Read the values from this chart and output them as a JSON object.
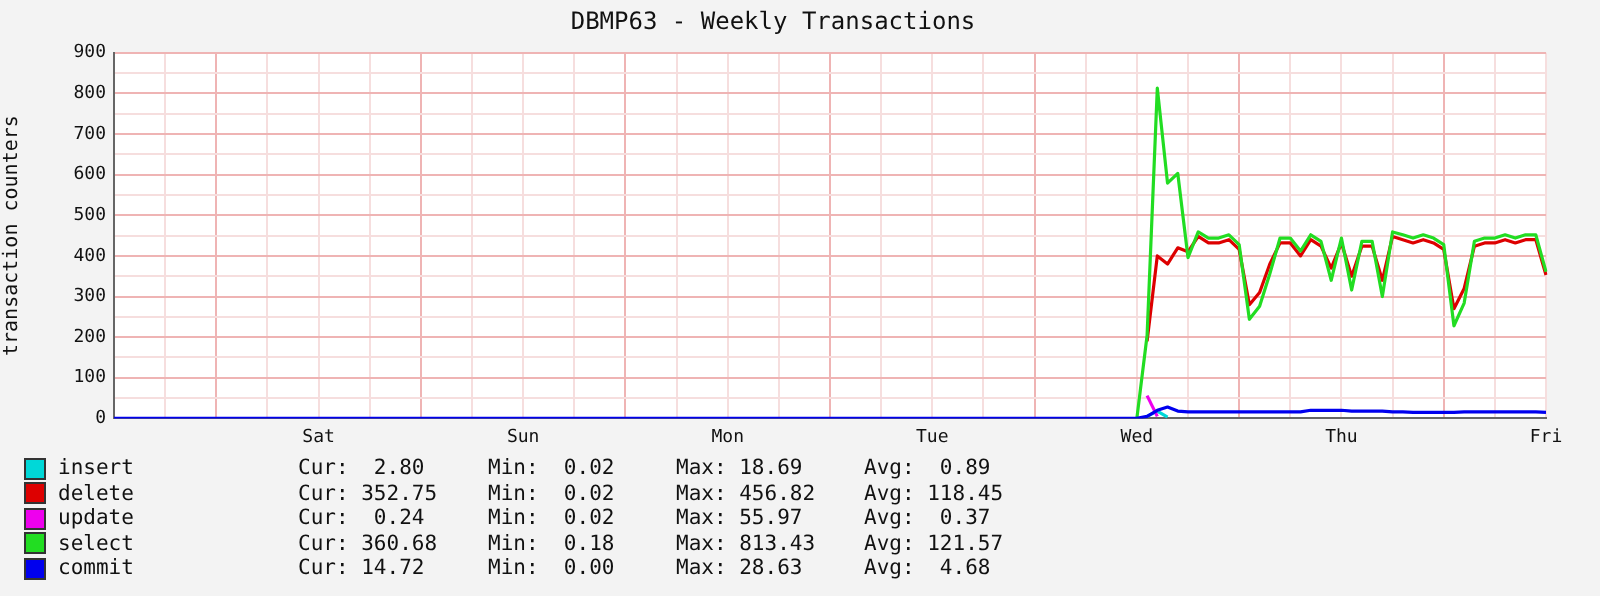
{
  "chart_data": {
    "type": "line",
    "title": "DBMP63 - Weekly Transactions",
    "ylabel": "transaction counters",
    "categories": [
      null,
      null,
      null,
      null,
      null,
      null,
      null,
      null,
      null,
      null,
      null,
      null,
      null,
      null,
      null,
      null,
      null,
      null,
      null,
      null,
      "Sat",
      null,
      null,
      null,
      null,
      null,
      null,
      null,
      null,
      null,
      null,
      null,
      null,
      null,
      null,
      null,
      null,
      null,
      null,
      null,
      "Sun",
      null,
      null,
      null,
      null,
      null,
      null,
      null,
      null,
      null,
      null,
      null,
      null,
      null,
      null,
      null,
      null,
      null,
      null,
      null,
      "Mon",
      null,
      null,
      null,
      null,
      null,
      null,
      null,
      null,
      null,
      null,
      null,
      null,
      null,
      null,
      null,
      null,
      null,
      null,
      null,
      "Tue",
      null,
      null,
      null,
      null,
      null,
      null,
      null,
      null,
      null,
      null,
      null,
      null,
      null,
      null,
      null,
      null,
      null,
      null,
      null,
      "Wed",
      null,
      null,
      null,
      null,
      null,
      null,
      null,
      null,
      null,
      null,
      null,
      null,
      null,
      null,
      null,
      null,
      null,
      null,
      null,
      "Thu",
      null,
      null,
      null,
      null,
      null,
      null,
      null,
      null,
      null,
      null,
      null,
      null,
      null,
      null,
      null,
      null,
      null,
      null,
      null,
      "Fri"
    ],
    "ylim": [
      0,
      900
    ],
    "yticks": [
      0,
      {
        "value": 50,
        "label": null
      },
      100,
      {
        "value": 150,
        "label": null
      },
      200,
      {
        "value": 250,
        "label": null
      },
      300,
      {
        "value": 350,
        "label": null
      },
      400,
      {
        "value": 450,
        "label": null
      },
      500,
      {
        "value": 550,
        "label": null
      },
      600,
      {
        "value": 650,
        "label": null
      },
      700,
      {
        "value": 750,
        "label": null
      },
      800,
      {
        "value": 850,
        "label": null
      },
      900
    ],
    "grid": true,
    "legend": "bottom",
    "marker": "none",
    "line_style": "solid",
    "series": [
      {
        "name": "insert",
        "color": "#00d8d8",
        "values": [
          null,
          null,
          null,
          null,
          null,
          null,
          null,
          null,
          null,
          null,
          null,
          null,
          null,
          null,
          null,
          null,
          null,
          null,
          null,
          null,
          null,
          null,
          null,
          null,
          null,
          null,
          null,
          null,
          null,
          null,
          null,
          null,
          null,
          null,
          null,
          null,
          null,
          null,
          null,
          null,
          null,
          null,
          null,
          null,
          null,
          null,
          null,
          null,
          null,
          null,
          null,
          null,
          null,
          null,
          null,
          null,
          null,
          null,
          null,
          null,
          null,
          null,
          null,
          null,
          null,
          null,
          null,
          null,
          null,
          null,
          null,
          null,
          null,
          null,
          null,
          null,
          null,
          null,
          null,
          null,
          null,
          null,
          null,
          null,
          null,
          null,
          null,
          null,
          null,
          null,
          null,
          null,
          null,
          null,
          null,
          null,
          null,
          null,
          null,
          null,
          null,
          5,
          18,
          3,
          null,
          null,
          null,
          null,
          null,
          null,
          null,
          null,
          null,
          null,
          null,
          null,
          null,
          null,
          null,
          null,
          null,
          null,
          null,
          null,
          null,
          null,
          null,
          null,
          null,
          null,
          null,
          null,
          null,
          null,
          null,
          null,
          null,
          null,
          null,
          null,
          null
        ]
      },
      {
        "name": "delete",
        "color": "#dd0000",
        "values": [
          null,
          null,
          null,
          null,
          null,
          null,
          null,
          null,
          null,
          null,
          null,
          null,
          null,
          null,
          null,
          null,
          null,
          null,
          null,
          null,
          null,
          null,
          null,
          null,
          null,
          null,
          null,
          null,
          null,
          null,
          null,
          null,
          null,
          null,
          null,
          null,
          null,
          null,
          null,
          null,
          null,
          null,
          null,
          null,
          null,
          null,
          null,
          null,
          null,
          null,
          null,
          null,
          null,
          null,
          null,
          null,
          null,
          null,
          null,
          null,
          null,
          null,
          null,
          null,
          null,
          null,
          null,
          null,
          null,
          null,
          null,
          null,
          null,
          null,
          null,
          null,
          null,
          null,
          null,
          null,
          null,
          null,
          null,
          null,
          null,
          null,
          null,
          null,
          null,
          null,
          null,
          null,
          null,
          null,
          null,
          null,
          null,
          null,
          null,
          null,
          null,
          190,
          400,
          380,
          420,
          410,
          448,
          432,
          432,
          440,
          416,
          280,
          310,
          380,
          432,
          432,
          400,
          440,
          424,
          370,
          432,
          350,
          424,
          424,
          340,
          448,
          440,
          432,
          440,
          432,
          416,
          270,
          320,
          424,
          432,
          432,
          440,
          432,
          440,
          440,
          353
        ]
      },
      {
        "name": "update",
        "color": "#ee00ee",
        "values": [
          null,
          null,
          null,
          null,
          null,
          null,
          null,
          null,
          null,
          null,
          null,
          null,
          null,
          null,
          null,
          null,
          null,
          null,
          null,
          null,
          null,
          null,
          null,
          null,
          null,
          null,
          null,
          null,
          null,
          null,
          null,
          null,
          null,
          null,
          null,
          null,
          null,
          null,
          null,
          null,
          null,
          null,
          null,
          null,
          null,
          null,
          null,
          null,
          null,
          null,
          null,
          null,
          null,
          null,
          null,
          null,
          null,
          null,
          null,
          null,
          null,
          null,
          null,
          null,
          null,
          null,
          null,
          null,
          null,
          null,
          null,
          null,
          null,
          null,
          null,
          null,
          null,
          null,
          null,
          null,
          null,
          null,
          null,
          null,
          null,
          null,
          null,
          null,
          null,
          null,
          null,
          null,
          null,
          null,
          null,
          null,
          null,
          null,
          null,
          null,
          null,
          56,
          5,
          null,
          null,
          null,
          null,
          null,
          null,
          null,
          null,
          null,
          null,
          null,
          null,
          null,
          null,
          null,
          null,
          null,
          null,
          null,
          null,
          null,
          null,
          null,
          null,
          null,
          null,
          null,
          null,
          null,
          null,
          null,
          null,
          null,
          null,
          null,
          null,
          null,
          null
        ]
      },
      {
        "name": "select",
        "color": "#22dd22",
        "values": [
          null,
          null,
          null,
          null,
          null,
          null,
          null,
          null,
          null,
          null,
          null,
          null,
          null,
          null,
          null,
          null,
          null,
          null,
          null,
          null,
          null,
          null,
          null,
          null,
          null,
          null,
          null,
          null,
          null,
          null,
          null,
          null,
          null,
          null,
          null,
          null,
          null,
          null,
          null,
          null,
          null,
          null,
          null,
          null,
          null,
          null,
          null,
          null,
          null,
          null,
          null,
          null,
          null,
          null,
          null,
          null,
          null,
          null,
          null,
          null,
          null,
          null,
          null,
          null,
          null,
          null,
          null,
          null,
          null,
          null,
          null,
          null,
          null,
          null,
          null,
          null,
          null,
          null,
          null,
          null,
          null,
          null,
          null,
          null,
          null,
          null,
          null,
          null,
          null,
          null,
          null,
          null,
          null,
          null,
          null,
          null,
          null,
          null,
          null,
          null,
          0,
          204,
          813,
          579,
          603,
          396,
          459,
          444,
          444,
          452,
          428,
          244,
          276,
          356,
          444,
          444,
          412,
          452,
          436,
          340,
          444,
          316,
          436,
          436,
          300,
          459,
          452,
          444,
          452,
          444,
          428,
          228,
          284,
          436,
          444,
          444,
          452,
          444,
          452,
          452,
          361
        ]
      },
      {
        "name": "commit",
        "color": "#0000ee",
        "values": [
          0,
          0,
          0,
          0,
          0,
          0,
          0,
          0,
          0,
          0,
          0,
          0,
          0,
          0,
          0,
          0,
          0,
          0,
          0,
          0,
          0,
          0,
          0,
          0,
          0,
          0,
          0,
          0,
          0,
          0,
          0,
          0,
          0,
          0,
          0,
          0,
          0,
          0,
          0,
          0,
          0,
          0,
          0,
          0,
          0,
          0,
          0,
          0,
          0,
          0,
          0,
          0,
          0,
          0,
          0,
          0,
          0,
          0,
          0,
          0,
          0,
          0,
          0,
          0,
          0,
          0,
          0,
          0,
          0,
          0,
          0,
          0,
          0,
          0,
          0,
          0,
          0,
          0,
          0,
          0,
          0,
          0,
          0,
          0,
          0,
          0,
          0,
          0,
          0,
          0,
          0,
          0,
          0,
          0,
          0,
          0,
          0,
          0,
          0,
          0,
          0,
          5,
          20,
          28,
          18,
          16,
          16,
          16,
          16,
          16,
          16,
          16,
          16,
          16,
          16,
          16,
          16,
          20,
          20,
          20,
          20,
          18,
          18,
          18,
          18,
          16,
          16,
          15,
          15,
          15,
          15,
          15,
          16,
          16,
          16,
          16,
          16,
          16,
          16,
          16,
          15
        ]
      }
    ],
    "annotations": [
      "Cur:  2.80",
      "Min:  0.02",
      "Max: 18.69",
      "Avg:  0.89",
      "Cur: 352.75",
      "Min:  0.02",
      "Max: 456.82",
      "Avg: 118.45",
      "Cur:  0.24",
      "Min:  0.02",
      "Max: 55.97",
      "Avg:  0.37",
      "Cur: 360.68",
      "Min:  0.18",
      "Max: 813.43",
      "Avg: 121.57",
      "Cur: 14.72",
      "Min:  0.00",
      "Max: 28.63",
      "Avg:  4.68"
    ]
  }
}
